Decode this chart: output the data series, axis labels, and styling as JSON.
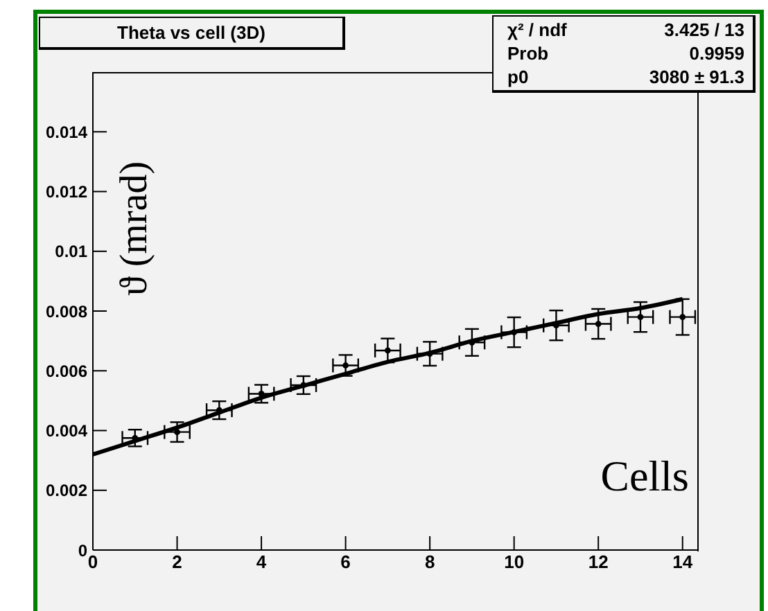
{
  "chart_data": {
    "type": "scatter",
    "title": "Theta vs cell (3D)",
    "xlabel": "Cells",
    "ylabel": "ϑ (mrad)",
    "annotations": [
      "χ² / ndf",
      "3.425 / 13",
      "Prob",
      "0.9959",
      "p0",
      "3080 ± 91.3"
    ],
    "xlim": [
      0,
      14.35
    ],
    "xticks": [
      0,
      2,
      4,
      6,
      8,
      10,
      12,
      14
    ],
    "ylim": [
      0,
      0.016
    ],
    "yticks": [
      0,
      0.002,
      0.004,
      0.006,
      0.008,
      0.01,
      0.012,
      0.014
    ],
    "grid": false,
    "legend": false,
    "series": [
      {
        "color": "#000000",
        "x": [
          1,
          2,
          3,
          4,
          5,
          6,
          7,
          8,
          9,
          10,
          11,
          12,
          13,
          14
        ],
        "values": [
          0.00375,
          0.00395,
          0.00468,
          0.00523,
          0.00552,
          0.00618,
          0.00668,
          0.00657,
          0.00695,
          0.00729,
          0.00752,
          0.00757,
          0.0078,
          0.0078
        ],
        "errors": [
          0.00028,
          0.00033,
          0.0003,
          0.0003,
          0.0003,
          0.00035,
          0.0004,
          0.0004,
          0.00045,
          0.0005,
          0.0005,
          0.0005,
          0.0005,
          0.0006
        ],
        "xerrors": [
          0.3,
          0.3,
          0.3,
          0.3,
          0.3,
          0.3,
          0.3,
          0.3,
          0.3,
          0.3,
          0.3,
          0.3,
          0.3,
          0.3
        ]
      },
      {
        "type": "line",
        "color": "#000000",
        "x": [
          0,
          1,
          2,
          3,
          4,
          5,
          6,
          7,
          8,
          9,
          10,
          11,
          12,
          13,
          14
        ],
        "values": [
          0.0032,
          0.00365,
          0.0041,
          0.0046,
          0.0051,
          0.0055,
          0.0059,
          0.0063,
          0.0066,
          0.007,
          0.0073,
          0.0076,
          0.0079,
          0.0081,
          0.0084
        ]
      }
    ]
  }
}
